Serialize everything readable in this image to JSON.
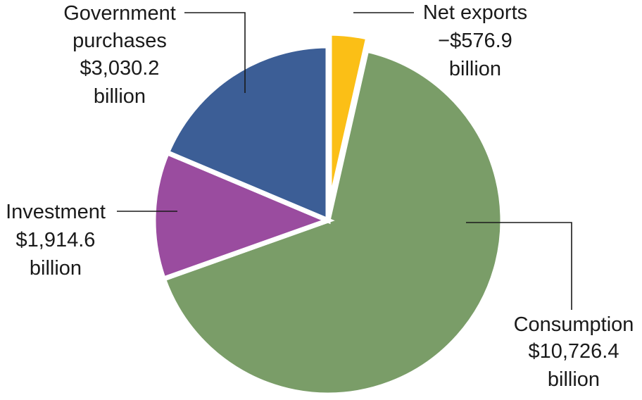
{
  "chart_data": {
    "type": "pie",
    "title": "",
    "slices": [
      {
        "category": "Net exports",
        "value": -576.9,
        "unit": "billion",
        "label_lines": [
          "Net exports",
          "−$576.9",
          "billion"
        ],
        "color": "#FBBF16",
        "exploded": true
      },
      {
        "category": "Consumption",
        "value": 10726.4,
        "unit": "billion",
        "label_lines": [
          "Consumption",
          "$10,726.4",
          "billion"
        ],
        "color": "#7A9D68",
        "exploded": false
      },
      {
        "category": "Investment",
        "value": 1914.6,
        "unit": "billion",
        "label_lines": [
          "Investment",
          "$1,914.6",
          "billion"
        ],
        "color": "#9A4C9F",
        "exploded": false
      },
      {
        "category": "Government purchases",
        "value": 3030.2,
        "unit": "billion",
        "label_lines": [
          "Government",
          "purchases",
          "$3,030.2",
          "billion"
        ],
        "color": "#3C5E96",
        "exploded": false
      }
    ],
    "legend": "none"
  }
}
